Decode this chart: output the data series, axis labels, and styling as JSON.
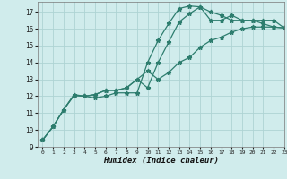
{
  "background_color": "#d0ecec",
  "grid_color": "#aed4d4",
  "line_color": "#2d7d6e",
  "xlabel": "Humidex (Indice chaleur)",
  "xlim": [
    -0.5,
    23
  ],
  "ylim": [
    9,
    17.6
  ],
  "yticks": [
    9,
    10,
    11,
    12,
    13,
    14,
    15,
    16,
    17
  ],
  "xticks": [
    0,
    1,
    2,
    3,
    4,
    5,
    6,
    7,
    8,
    9,
    10,
    11,
    12,
    13,
    14,
    15,
    16,
    17,
    18,
    19,
    20,
    21,
    22,
    23
  ],
  "lines": [
    {
      "x": [
        0,
        1,
        2,
        3,
        4,
        5,
        6,
        7,
        8,
        9,
        10,
        11,
        12,
        13,
        14,
        15,
        16,
        17,
        18,
        19,
        20,
        21,
        22,
        23
      ],
      "y": [
        9.4,
        10.2,
        11.2,
        12.1,
        12.0,
        11.9,
        12.0,
        12.2,
        12.2,
        12.2,
        14.0,
        15.3,
        16.3,
        17.2,
        17.35,
        17.3,
        17.0,
        16.8,
        16.5,
        16.5,
        16.5,
        16.3,
        16.1,
        16.05
      ]
    },
    {
      "x": [
        0,
        1,
        2,
        3,
        4,
        5,
        6,
        7,
        8,
        9,
        10,
        11,
        12,
        13,
        14,
        15,
        16,
        17,
        18,
        19,
        20,
        21,
        22,
        23
      ],
      "y": [
        9.4,
        10.2,
        11.2,
        12.05,
        12.0,
        12.1,
        12.35,
        12.35,
        12.5,
        13.0,
        12.5,
        14.0,
        15.2,
        16.4,
        16.9,
        17.3,
        16.5,
        16.5,
        16.8,
        16.5,
        16.5,
        16.5,
        16.5,
        16.05
      ]
    },
    {
      "x": [
        0,
        1,
        2,
        3,
        4,
        5,
        6,
        7,
        8,
        9,
        10,
        11,
        12,
        13,
        14,
        15,
        16,
        17,
        18,
        19,
        20,
        21,
        22,
        23
      ],
      "y": [
        9.4,
        10.2,
        11.2,
        12.05,
        12.0,
        12.1,
        12.35,
        12.35,
        12.5,
        13.0,
        13.5,
        13.0,
        13.4,
        14.0,
        14.3,
        14.9,
        15.3,
        15.5,
        15.8,
        16.0,
        16.1,
        16.1,
        16.1,
        16.05
      ]
    }
  ]
}
